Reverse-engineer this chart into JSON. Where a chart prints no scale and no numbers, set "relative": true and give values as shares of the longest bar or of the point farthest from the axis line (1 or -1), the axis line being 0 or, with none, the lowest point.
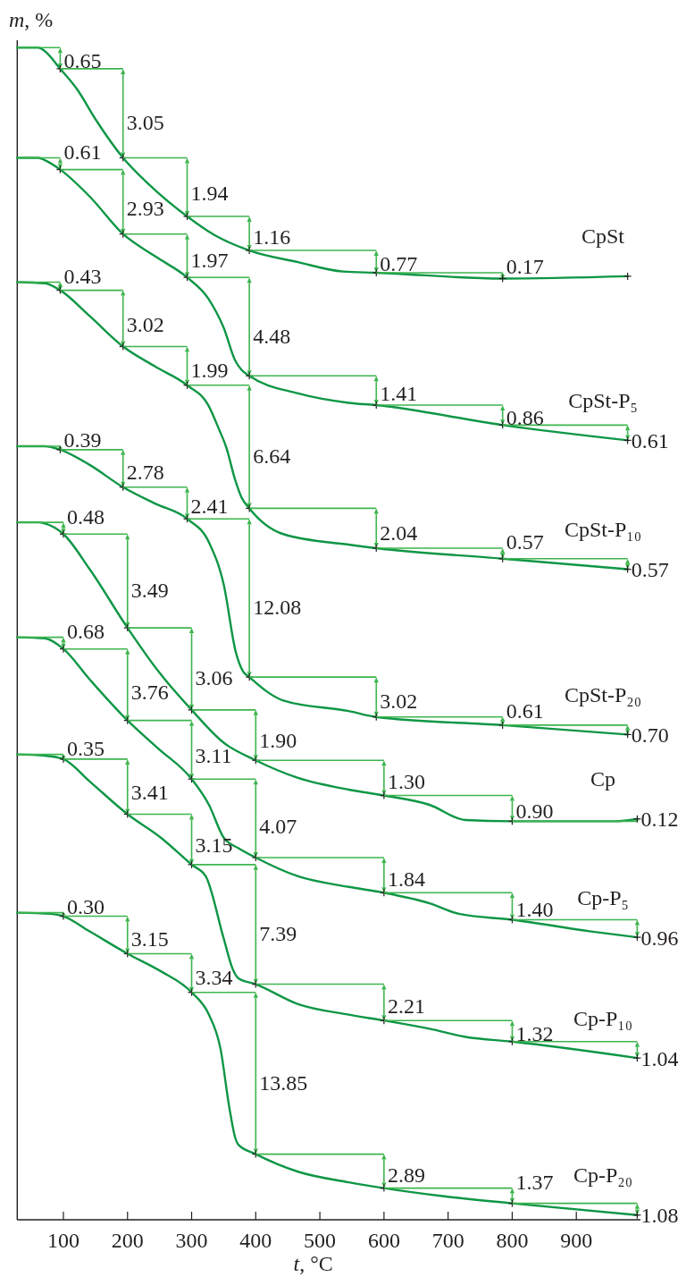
{
  "chart_data": {
    "type": "line",
    "relative": true,
    "xlabel": "t, °C",
    "ylabel": "m, %",
    "xlim": [
      28,
      1000
    ],
    "xticks": [
      100,
      200,
      300,
      400,
      500,
      600,
      700,
      800,
      900
    ],
    "series": [
      {
        "name": "CpSt",
        "color": "#0e9645",
        "x": [
          28,
          61,
          71,
          95,
          122,
          150,
          193,
          234,
          293,
          336,
          390,
          466,
          536,
          588,
          785,
          980
        ],
        "values": [
          1.0,
          1.0,
          0.997,
          0.982,
          0.964,
          0.939,
          0.906,
          0.883,
          0.856,
          0.84,
          0.827,
          0.817,
          0.809,
          0.808,
          0.803,
          0.805
        ]
      },
      {
        "name": "CpSt-P₅",
        "color": "#0e9645",
        "x": [
          28,
          61,
          71,
          95,
          141,
          193,
          243,
          293,
          326,
          350,
          368,
          378,
          390,
          466,
          545,
          588,
          785,
          980
        ],
        "values": [
          0.906,
          0.906,
          0.904,
          0.896,
          0.873,
          0.841,
          0.822,
          0.804,
          0.786,
          0.761,
          0.733,
          0.725,
          0.72,
          0.705,
          0.697,
          0.695,
          0.678,
          0.665
        ]
      },
      {
        "name": "CpSt-P₁₀",
        "color": "#0e9645",
        "x": [
          28,
          71,
          95,
          141,
          193,
          243,
          293,
          326,
          343,
          354,
          368,
          378,
          390,
          443,
          545,
          588,
          785,
          980
        ],
        "values": [
          0.8,
          0.799,
          0.793,
          0.771,
          0.745,
          0.728,
          0.712,
          0.695,
          0.674,
          0.659,
          0.631,
          0.616,
          0.607,
          0.585,
          0.576,
          0.573,
          0.564,
          0.555
        ]
      },
      {
        "name": "CpSt-P₂₀",
        "color": "#0e9645",
        "x": [
          28,
          71,
          95,
          141,
          193,
          243,
          293,
          327,
          350,
          369,
          380,
          390,
          443,
          545,
          588,
          785,
          980
        ],
        "values": [
          0.66,
          0.66,
          0.657,
          0.644,
          0.625,
          0.611,
          0.598,
          0.578,
          0.542,
          0.484,
          0.468,
          0.463,
          0.443,
          0.434,
          0.429,
          0.422,
          0.414
        ]
      },
      {
        "name": "Cp",
        "color": "#0e9645",
        "x": [
          28,
          61,
          71,
          100,
          141,
          200,
          248,
          300,
          350,
          400,
          466,
          545,
          600,
          671,
          727,
          800,
          960,
          995
        ],
        "values": [
          0.595,
          0.595,
          0.594,
          0.585,
          0.555,
          0.505,
          0.468,
          0.435,
          0.407,
          0.392,
          0.377,
          0.367,
          0.362,
          0.354,
          0.341,
          0.34,
          0.34,
          0.342
        ]
      },
      {
        "name": "Cp-P₅",
        "color": "#0e9645",
        "x": [
          28,
          71,
          100,
          141,
          200,
          248,
          300,
          327,
          350,
          373,
          400,
          466,
          545,
          600,
          671,
          717,
          800,
          923,
          995
        ],
        "values": [
          0.497,
          0.496,
          0.487,
          0.461,
          0.426,
          0.402,
          0.376,
          0.354,
          0.326,
          0.317,
          0.309,
          0.293,
          0.284,
          0.279,
          0.27,
          0.261,
          0.256,
          0.246,
          0.241
        ]
      },
      {
        "name": "Cp-P₁₀",
        "color": "#0e9645",
        "x": [
          28,
          71,
          100,
          141,
          200,
          252,
          300,
          322,
          350,
          364,
          373,
          400,
          466,
          545,
          600,
          671,
          727,
          800,
          995
        ],
        "values": [
          0.397,
          0.396,
          0.393,
          0.374,
          0.346,
          0.326,
          0.303,
          0.293,
          0.24,
          0.214,
          0.206,
          0.201,
          0.184,
          0.175,
          0.17,
          0.163,
          0.156,
          0.152,
          0.138
        ]
      },
      {
        "name": "Cp-P₂₀",
        "color": "#0e9645",
        "x": [
          28,
          80,
          100,
          141,
          200,
          252,
          300,
          326,
          345,
          359,
          368,
          373,
          400,
          466,
          545,
          600,
          694,
          800,
          995
        ],
        "values": [
          0.262,
          0.261,
          0.259,
          0.246,
          0.227,
          0.212,
          0.194,
          0.176,
          0.146,
          0.095,
          0.07,
          0.064,
          0.056,
          0.041,
          0.032,
          0.027,
          0.02,
          0.014,
          0.004
        ]
      }
    ],
    "annotations": [
      {
        "text": "0.65",
        "x": 95,
        "y": 0.982
      },
      {
        "text": "3.05",
        "x": 193,
        "y": 0.906
      },
      {
        "text": "1.94",
        "x": 293,
        "y": 0.856
      },
      {
        "text": "1.16",
        "x": 390,
        "y": 0.827
      },
      {
        "text": "0.77",
        "x": 588,
        "y": 0.808
      },
      {
        "text": "0.17",
        "x": 785,
        "y": 0.803
      },
      {
        "text": "0.61",
        "x": 95,
        "y": 0.896
      },
      {
        "text": "2.93",
        "x": 193,
        "y": 0.841
      },
      {
        "text": "1.97",
        "x": 293,
        "y": 0.804
      },
      {
        "text": "4.48",
        "x": 390,
        "y": 0.72
      },
      {
        "text": "1.41",
        "x": 588,
        "y": 0.695
      },
      {
        "text": "0.86",
        "x": 785,
        "y": 0.678
      },
      {
        "text": "0.61",
        "x": 980,
        "y": 0.665
      },
      {
        "text": "0.43",
        "x": 95,
        "y": 0.793
      },
      {
        "text": "3.02",
        "x": 193,
        "y": 0.745
      },
      {
        "text": "1.99",
        "x": 293,
        "y": 0.712
      },
      {
        "text": "6.64",
        "x": 390,
        "y": 0.607
      },
      {
        "text": "2.04",
        "x": 588,
        "y": 0.573
      },
      {
        "text": "0.57",
        "x": 785,
        "y": 0.564
      },
      {
        "text": "0.57",
        "x": 980,
        "y": 0.555
      },
      {
        "text": "0.39",
        "x": 95,
        "y": 0.657
      },
      {
        "text": "2.78",
        "x": 193,
        "y": 0.625
      },
      {
        "text": "2.41",
        "x": 293,
        "y": 0.598
      },
      {
        "text": "12.08",
        "x": 390,
        "y": 0.463
      },
      {
        "text": "3.02",
        "x": 588,
        "y": 0.429
      },
      {
        "text": "0.61",
        "x": 785,
        "y": 0.422
      },
      {
        "text": "0.70",
        "x": 980,
        "y": 0.414
      },
      {
        "text": "0.48",
        "x": 100,
        "y": 0.585
      },
      {
        "text": "3.49",
        "x": 200,
        "y": 0.505
      },
      {
        "text": "3.06",
        "x": 300,
        "y": 0.435
      },
      {
        "text": "1.90",
        "x": 400,
        "y": 0.392
      },
      {
        "text": "1.30",
        "x": 600,
        "y": 0.362
      },
      {
        "text": "0.90",
        "x": 800,
        "y": 0.34
      },
      {
        "text": "0.12",
        "x": 995,
        "y": 0.342
      },
      {
        "text": "0.68",
        "x": 100,
        "y": 0.487
      },
      {
        "text": "3.76",
        "x": 200,
        "y": 0.426
      },
      {
        "text": "3.11",
        "x": 300,
        "y": 0.376
      },
      {
        "text": "4.07",
        "x": 400,
        "y": 0.309
      },
      {
        "text": "1.84",
        "x": 600,
        "y": 0.279
      },
      {
        "text": "1.40",
        "x": 800,
        "y": 0.256
      },
      {
        "text": "0.96",
        "x": 995,
        "y": 0.241
      },
      {
        "text": "0.35",
        "x": 100,
        "y": 0.393
      },
      {
        "text": "3.41",
        "x": 200,
        "y": 0.346
      },
      {
        "text": "3.15",
        "x": 300,
        "y": 0.303
      },
      {
        "text": "7.39",
        "x": 400,
        "y": 0.201
      },
      {
        "text": "2.21",
        "x": 600,
        "y": 0.17
      },
      {
        "text": "1.32",
        "x": 800,
        "y": 0.152
      },
      {
        "text": "1.04",
        "x": 995,
        "y": 0.138
      },
      {
        "text": "0.30",
        "x": 100,
        "y": 0.259
      },
      {
        "text": "3.15",
        "x": 200,
        "y": 0.227
      },
      {
        "text": "3.34",
        "x": 300,
        "y": 0.194
      },
      {
        "text": "13.85",
        "x": 400,
        "y": 0.056
      },
      {
        "text": "2.89",
        "x": 600,
        "y": 0.027
      },
      {
        "text": "1.37",
        "x": 800,
        "y": 0.014
      },
      {
        "text": "1.08",
        "x": 995,
        "y": 0.004
      }
    ]
  }
}
